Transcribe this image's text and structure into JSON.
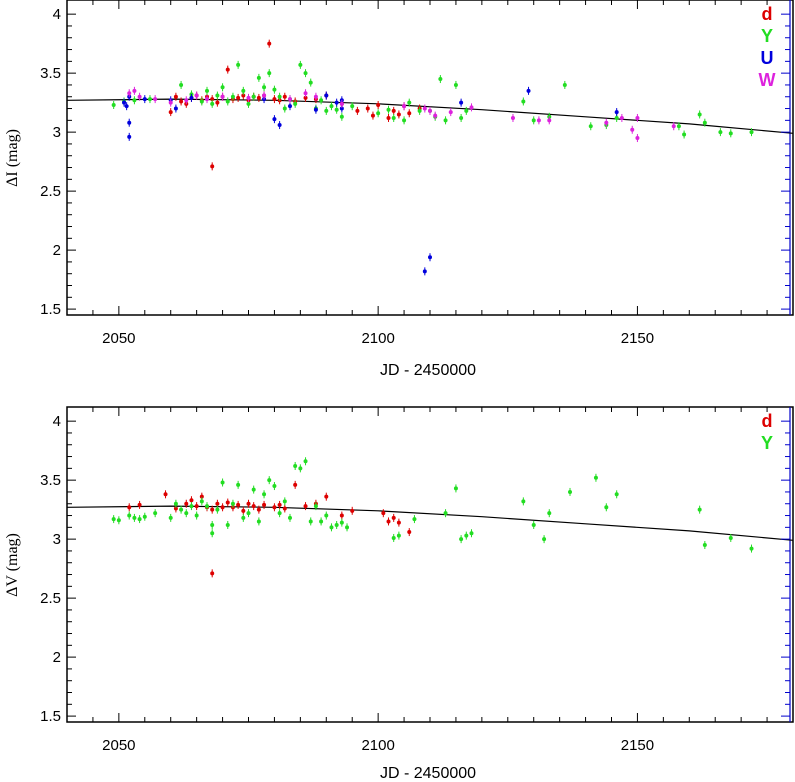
{
  "chart_data": [
    {
      "type": "scatter",
      "xlabel": "JD - 2450000",
      "ylabel": "ΔI (mag)",
      "xlim": [
        2040,
        2180
      ],
      "ylim": [
        1.45,
        4.12
      ],
      "xticks": [
        2050,
        2100,
        2150
      ],
      "xtick_labels": [
        "2050",
        "2100",
        "2150"
      ],
      "yticks": [
        1.5,
        2,
        2.5,
        3,
        3.5,
        4
      ],
      "ytick_labels": [
        "1.5",
        "2",
        "2.5",
        "3",
        "3.5",
        "4"
      ],
      "legend_placement": "top-right",
      "fit_curve": {
        "x": [
          2040,
          2060,
          2080,
          2100,
          2120,
          2140,
          2160,
          2180
        ],
        "y": [
          3.27,
          3.28,
          3.27,
          3.24,
          3.19,
          3.13,
          3.07,
          2.99
        ]
      },
      "series": [
        {
          "name": "d",
          "color": "#dd0000",
          "points": [
            [
              2060,
              3.17
            ],
            [
              2061,
              3.3
            ],
            [
              2062,
              3.26
            ],
            [
              2063,
              3.24
            ],
            [
              2064,
              3.29
            ],
            [
              2065,
              3.31
            ],
            [
              2066,
              3.27
            ],
            [
              2067,
              3.3
            ],
            [
              2068,
              3.28
            ],
            [
              2068,
              2.71
            ],
            [
              2069,
              3.25
            ],
            [
              2070,
              3.3
            ],
            [
              2071,
              3.53
            ],
            [
              2072,
              3.28
            ],
            [
              2073,
              3.29
            ],
            [
              2074,
              3.31
            ],
            [
              2075,
              3.27
            ],
            [
              2076,
              3.3
            ],
            [
              2077,
              3.29
            ],
            [
              2078,
              3.31
            ],
            [
              2079,
              3.75
            ],
            [
              2080,
              3.28
            ],
            [
              2081,
              3.27
            ],
            [
              2082,
              3.3
            ],
            [
              2084,
              3.26
            ],
            [
              2086,
              3.29
            ],
            [
              2088,
              3.28
            ],
            [
              2090,
              3.31
            ],
            [
              2093,
              3.24
            ],
            [
              2096,
              3.18
            ],
            [
              2098,
              3.2
            ],
            [
              2099,
              3.14
            ],
            [
              2100,
              3.23
            ],
            [
              2102,
              3.12
            ],
            [
              2103,
              3.18
            ],
            [
              2104,
              3.15
            ],
            [
              2105,
              3.22
            ],
            [
              2106,
              3.16
            ],
            [
              2108,
              3.2
            ]
          ]
        },
        {
          "name": "Y",
          "color": "#22dd22",
          "points": [
            [
              2049,
              3.23
            ],
            [
              2051,
              3.26
            ],
            [
              2053,
              3.27
            ],
            [
              2056,
              3.28
            ],
            [
              2062,
              3.4
            ],
            [
              2064,
              3.32
            ],
            [
              2066,
              3.26
            ],
            [
              2067,
              3.35
            ],
            [
              2068,
              3.24
            ],
            [
              2069,
              3.31
            ],
            [
              2070,
              3.38
            ],
            [
              2071,
              3.26
            ],
            [
              2072,
              3.3
            ],
            [
              2073,
              3.57
            ],
            [
              2074,
              3.35
            ],
            [
              2075,
              3.24
            ],
            [
              2076,
              3.3
            ],
            [
              2077,
              3.46
            ],
            [
              2078,
              3.38
            ],
            [
              2079,
              3.5
            ],
            [
              2080,
              3.36
            ],
            [
              2081,
              3.3
            ],
            [
              2082,
              3.2
            ],
            [
              2083,
              3.28
            ],
            [
              2084,
              3.24
            ],
            [
              2085,
              3.57
            ],
            [
              2086,
              3.5
            ],
            [
              2087,
              3.42
            ],
            [
              2088,
              3.2
            ],
            [
              2089,
              3.27
            ],
            [
              2090,
              3.18
            ],
            [
              2091,
              3.22
            ],
            [
              2092,
              3.19
            ],
            [
              2093,
              3.13
            ],
            [
              2095,
              3.22
            ],
            [
              2100,
              3.16
            ],
            [
              2102,
              3.19
            ],
            [
              2103,
              3.12
            ],
            [
              2105,
              3.1
            ],
            [
              2106,
              3.25
            ],
            [
              2108,
              3.18
            ],
            [
              2110,
              3.18
            ],
            [
              2111,
              3.13
            ],
            [
              2112,
              3.45
            ],
            [
              2113,
              3.1
            ],
            [
              2115,
              3.4
            ],
            [
              2116,
              3.12
            ],
            [
              2117,
              3.18
            ],
            [
              2128,
              3.26
            ],
            [
              2130,
              3.1
            ],
            [
              2133,
              3.13
            ],
            [
              2136,
              3.4
            ],
            [
              2141,
              3.05
            ],
            [
              2144,
              3.06
            ],
            [
              2146,
              3.12
            ],
            [
              2158,
              3.05
            ],
            [
              2159,
              2.98
            ],
            [
              2162,
              3.15
            ],
            [
              2163,
              3.08
            ],
            [
              2166,
              3.0
            ],
            [
              2168,
              2.99
            ],
            [
              2172,
              3.0
            ]
          ]
        },
        {
          "name": "U",
          "color": "#0000dd",
          "points": [
            [
              2051,
              3.25
            ],
            [
              2051.5,
              3.22
            ],
            [
              2052,
              3.3
            ],
            [
              2052,
              3.08
            ],
            [
              2052,
              2.96
            ],
            [
              2055,
              3.28
            ],
            [
              2060,
              3.27
            ],
            [
              2061,
              3.2
            ],
            [
              2064,
              3.29
            ],
            [
              2078,
              3.28
            ],
            [
              2080,
              3.11
            ],
            [
              2081,
              3.06
            ],
            [
              2083,
              3.22
            ],
            [
              2088,
              3.19
            ],
            [
              2090,
              3.31
            ],
            [
              2092,
              3.25
            ],
            [
              2093,
              3.27
            ],
            [
              2093,
              3.2
            ],
            [
              2109,
              1.82
            ],
            [
              2110,
              1.94
            ],
            [
              2116,
              3.25
            ],
            [
              2129,
              3.35
            ],
            [
              2146,
              3.17
            ]
          ]
        },
        {
          "name": "W",
          "color": "#dd22dd",
          "points": [
            [
              2052,
              3.33
            ],
            [
              2053,
              3.35
            ],
            [
              2054,
              3.3
            ],
            [
              2057,
              3.28
            ],
            [
              2060,
              3.25
            ],
            [
              2063,
              3.27
            ],
            [
              2065,
              3.31
            ],
            [
              2067,
              3.28
            ],
            [
              2070,
              3.3
            ],
            [
              2075,
              3.29
            ],
            [
              2078,
              3.31
            ],
            [
              2083,
              3.28
            ],
            [
              2086,
              3.33
            ],
            [
              2088,
              3.3
            ],
            [
              2093,
              3.24
            ],
            [
              2105,
              3.22
            ],
            [
              2109,
              3.2
            ],
            [
              2110,
              3.18
            ],
            [
              2111,
              3.14
            ],
            [
              2114,
              3.17
            ],
            [
              2118,
              3.21
            ],
            [
              2126,
              3.12
            ],
            [
              2131,
              3.1
            ],
            [
              2133,
              3.1
            ],
            [
              2144,
              3.08
            ],
            [
              2147,
              3.12
            ],
            [
              2149,
              3.02
            ],
            [
              2150,
              3.12
            ],
            [
              2150,
              2.95
            ],
            [
              2157,
              3.05
            ]
          ]
        }
      ]
    },
    {
      "type": "scatter",
      "xlabel": "JD - 2450000",
      "ylabel": "ΔV (mag)",
      "xlim": [
        2040,
        2180
      ],
      "ylim": [
        1.45,
        4.12
      ],
      "xticks": [
        2050,
        2100,
        2150
      ],
      "xtick_labels": [
        "2050",
        "2100",
        "2150"
      ],
      "yticks": [
        1.5,
        2,
        2.5,
        3,
        3.5,
        4
      ],
      "ytick_labels": [
        "1.5",
        "2",
        "2.5",
        "3",
        "3.5",
        "4"
      ],
      "legend_placement": "top-right",
      "fit_curve": {
        "x": [
          2040,
          2060,
          2080,
          2100,
          2120,
          2140,
          2160,
          2180
        ],
        "y": [
          3.27,
          3.28,
          3.27,
          3.24,
          3.19,
          3.13,
          3.07,
          2.99
        ]
      },
      "series": [
        {
          "name": "d",
          "color": "#dd0000",
          "points": [
            [
              2052,
              3.27
            ],
            [
              2054,
              3.29
            ],
            [
              2059,
              3.38
            ],
            [
              2061,
              3.26
            ],
            [
              2063,
              3.3
            ],
            [
              2064,
              3.33
            ],
            [
              2065,
              3.28
            ],
            [
              2066,
              3.36
            ],
            [
              2067,
              3.27
            ],
            [
              2068,
              3.25
            ],
            [
              2068,
              2.71
            ],
            [
              2069,
              3.3
            ],
            [
              2070,
              3.27
            ],
            [
              2071,
              3.31
            ],
            [
              2072,
              3.27
            ],
            [
              2073,
              3.29
            ],
            [
              2074,
              3.24
            ],
            [
              2075,
              3.3
            ],
            [
              2076,
              3.28
            ],
            [
              2077,
              3.25
            ],
            [
              2078,
              3.29
            ],
            [
              2080,
              3.27
            ],
            [
              2081,
              3.29
            ],
            [
              2082,
              3.26
            ],
            [
              2084,
              3.46
            ],
            [
              2086,
              3.28
            ],
            [
              2088,
              3.3
            ],
            [
              2090,
              3.36
            ],
            [
              2093,
              3.2
            ],
            [
              2095,
              3.24
            ],
            [
              2101,
              3.22
            ],
            [
              2102,
              3.15
            ],
            [
              2103,
              3.18
            ],
            [
              2104,
              3.14
            ],
            [
              2106,
              3.06
            ]
          ]
        },
        {
          "name": "Y",
          "color": "#22dd22",
          "points": [
            [
              2049,
              3.17
            ],
            [
              2050,
              3.16
            ],
            [
              2052,
              3.2
            ],
            [
              2053,
              3.18
            ],
            [
              2054,
              3.17
            ],
            [
              2055,
              3.19
            ],
            [
              2057,
              3.22
            ],
            [
              2060,
              3.18
            ],
            [
              2061,
              3.3
            ],
            [
              2062,
              3.25
            ],
            [
              2063,
              3.22
            ],
            [
              2064,
              3.28
            ],
            [
              2065,
              3.2
            ],
            [
              2066,
              3.32
            ],
            [
              2067,
              3.28
            ],
            [
              2068,
              3.05
            ],
            [
              2068,
              3.12
            ],
            [
              2069,
              3.25
            ],
            [
              2070,
              3.48
            ],
            [
              2071,
              3.12
            ],
            [
              2072,
              3.3
            ],
            [
              2073,
              3.46
            ],
            [
              2074,
              3.18
            ],
            [
              2075,
              3.22
            ],
            [
              2076,
              3.42
            ],
            [
              2077,
              3.15
            ],
            [
              2078,
              3.38
            ],
            [
              2079,
              3.5
            ],
            [
              2080,
              3.45
            ],
            [
              2081,
              3.22
            ],
            [
              2082,
              3.32
            ],
            [
              2083,
              3.18
            ],
            [
              2084,
              3.62
            ],
            [
              2085,
              3.6
            ],
            [
              2086,
              3.66
            ],
            [
              2087,
              3.15
            ],
            [
              2088,
              3.28
            ],
            [
              2089,
              3.15
            ],
            [
              2090,
              3.2
            ],
            [
              2091,
              3.1
            ],
            [
              2092,
              3.12
            ],
            [
              2093,
              3.14
            ],
            [
              2094,
              3.1
            ],
            [
              2103,
              3.01
            ],
            [
              2104,
              3.03
            ],
            [
              2107,
              3.17
            ],
            [
              2113,
              3.22
            ],
            [
              2115,
              3.43
            ],
            [
              2116,
              3.0
            ],
            [
              2117,
              3.03
            ],
            [
              2118,
              3.05
            ],
            [
              2128,
              3.32
            ],
            [
              2130,
              3.12
            ],
            [
              2132,
              3.0
            ],
            [
              2133,
              3.22
            ],
            [
              2137,
              3.4
            ],
            [
              2142,
              3.52
            ],
            [
              2144,
              3.27
            ],
            [
              2146,
              3.38
            ],
            [
              2162,
              3.25
            ],
            [
              2163,
              2.95
            ],
            [
              2168,
              3.01
            ],
            [
              2172,
              2.92
            ]
          ]
        }
      ]
    }
  ]
}
